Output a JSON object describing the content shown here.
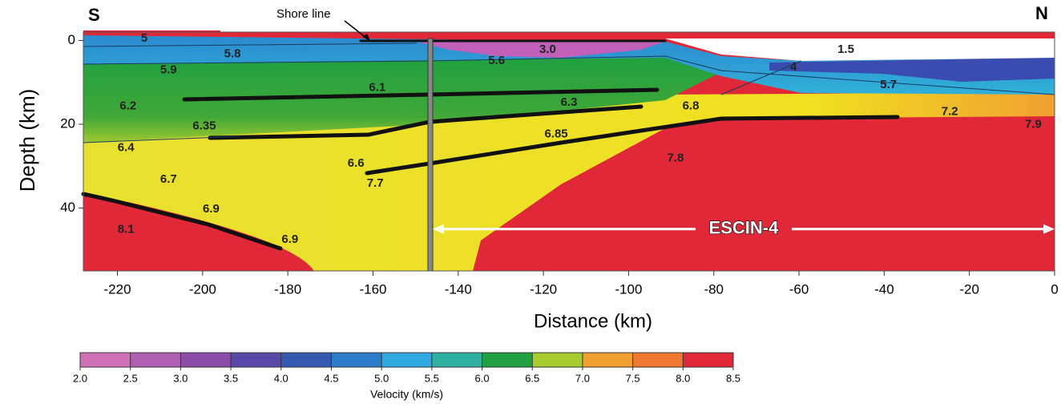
{
  "chart_data": {
    "type": "velocity-section",
    "x_label": "Distance (km)",
    "y_label": "Depth (km)",
    "left_label": "S",
    "right_label": "N",
    "xlim": [
      -228,
      0
    ],
    "xticks": [
      -220,
      -200,
      -180,
      -160,
      -140,
      -120,
      -100,
      -80,
      -60,
      -40,
      -20,
      0
    ],
    "ylim": [
      -2,
      55
    ],
    "yticks": [
      0,
      20,
      40
    ],
    "y_inverted": true,
    "shore_label": "Shore line",
    "profile": {
      "name": "ESCIN-4",
      "start": -146,
      "end": 0,
      "depth": 45
    },
    "annotations": [
      {
        "text": "5",
        "x": -213.7,
        "y": -0.5
      },
      {
        "text": "5.8",
        "x": -193,
        "y": 3.3
      },
      {
        "text": "5.9",
        "x": -208,
        "y": 7.1
      },
      {
        "text": "6.2",
        "x": -217.5,
        "y": 15.7
      },
      {
        "text": "6.35",
        "x": -199.6,
        "y": 20.5
      },
      {
        "text": "6.4",
        "x": -218,
        "y": 25.6
      },
      {
        "text": "6.7",
        "x": -208,
        "y": 33.2
      },
      {
        "text": "6.9",
        "x": -198,
        "y": 40.3
      },
      {
        "text": "6.9",
        "x": -179.5,
        "y": 47.5
      },
      {
        "text": "8.1",
        "x": -218,
        "y": 45.2
      },
      {
        "text": "6.6",
        "x": -164,
        "y": 29.4
      },
      {
        "text": "7.7",
        "x": -159.5,
        "y": 34.2
      },
      {
        "text": "6.1",
        "x": -159,
        "y": 11.3
      },
      {
        "text": "6.3",
        "x": -114,
        "y": 14.8
      },
      {
        "text": "6.85",
        "x": -117,
        "y": 22.4
      },
      {
        "text": "6.8",
        "x": -85.4,
        "y": 15.7
      },
      {
        "text": "7.8",
        "x": -89,
        "y": 28.1
      },
      {
        "text": "3.0",
        "x": -119,
        "y": 2.2
      },
      {
        "text": "5.6",
        "x": -131,
        "y": 4.9
      },
      {
        "text": "1.5",
        "x": -49,
        "y": 2.2
      },
      {
        "text": "4",
        "x": -61.3,
        "y": 6.4
      },
      {
        "text": "5.7",
        "x": -39,
        "y": 10.6
      },
      {
        "text": "7.2",
        "x": -24.6,
        "y": 17
      },
      {
        "text": "7.9",
        "x": -5,
        "y": 20.1
      }
    ],
    "colorbar": {
      "label": "Velocity (km/s)",
      "clim": [
        2,
        8.5
      ],
      "ticks": [
        {
          "value": 2,
          "label": "2.0"
        },
        2.5,
        {
          "value": 3,
          "label": "3.0"
        },
        3.5,
        {
          "value": 4,
          "label": "4.0"
        },
        4.5,
        {
          "value": 5,
          "label": "5.0"
        },
        5.5,
        {
          "value": 6,
          "label": "6.0"
        },
        6.5,
        {
          "value": 7,
          "label": "7.0"
        },
        7.5,
        {
          "value": 8,
          "label": "8.0"
        },
        8.5
      ],
      "colors": [
        "#d070b8",
        "#b060b0",
        "#8a4ca8",
        "#5a48a8",
        "#3558b0",
        "#2c7cc8",
        "#30a8e0",
        "#30b0a0",
        "#20a040",
        "#a8cc30",
        "#f0a030",
        "#f07830",
        "#e02838"
      ]
    }
  }
}
